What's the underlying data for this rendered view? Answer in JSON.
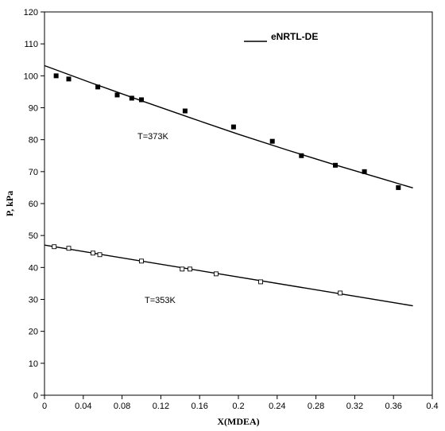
{
  "chart_data": {
    "type": "scatter",
    "xlabel": "X(MDEA)",
    "ylabel": "P, kPa",
    "xlim": [
      0,
      0.4
    ],
    "ylim": [
      0,
      120
    ],
    "x_ticks": [
      0,
      0.04,
      0.08,
      0.12,
      0.16,
      0.2,
      0.24,
      0.28,
      0.32,
      0.36,
      0.4
    ],
    "x_tick_labels": [
      "0",
      "0.04",
      "0.08",
      "0.12",
      "0.16",
      "0.2",
      "0.24",
      "0.28",
      "0.32",
      "0.36",
      "0.4"
    ],
    "y_ticks": [
      0,
      10,
      20,
      30,
      40,
      50,
      60,
      70,
      80,
      90,
      100,
      110,
      120
    ],
    "y_tick_labels": [
      "0",
      "10",
      "20",
      "30",
      "40",
      "50",
      "60",
      "70",
      "80",
      "90",
      "100",
      "110",
      "120"
    ],
    "grid": false,
    "legend": {
      "position": "top-right",
      "entries": [
        {
          "label": "eNRTL-DE",
          "style": "line"
        }
      ]
    },
    "annotations": [
      {
        "text": "T=373K",
        "x": 0.135,
        "y": 80
      },
      {
        "text": "T=353K",
        "x": 0.15,
        "y": 31.5
      }
    ],
    "series": [
      {
        "marker": "filled-square",
        "x": [
          0.012,
          0.025,
          0.055,
          0.075,
          0.09,
          0.1,
          0.145,
          0.195,
          0.235,
          0.265,
          0.3,
          0.33,
          0.365
        ],
        "values": [
          100,
          99,
          96.5,
          94,
          93,
          92.5,
          89,
          84,
          79.5,
          75,
          72,
          70,
          65
        ]
      },
      {
        "marker": "open-square",
        "x": [
          0.01,
          0.025,
          0.05,
          0.057,
          0.1,
          0.142,
          0.15,
          0.177,
          0.223,
          0.305
        ],
        "values": [
          46.5,
          46,
          44.5,
          44,
          42,
          39.5,
          39.5,
          38,
          35.5,
          32
        ]
      },
      {
        "marker": "line",
        "x": [
          0,
          0.05,
          0.1,
          0.15,
          0.2,
          0.25,
          0.3,
          0.35,
          0.38
        ],
        "values": [
          103.2,
          97.6,
          92.2,
          86.9,
          81.7,
          76.8,
          72.1,
          67.6,
          64.9
        ]
      },
      {
        "marker": "line",
        "x": [
          0,
          0.38
        ],
        "values": [
          47,
          28
        ]
      }
    ]
  }
}
